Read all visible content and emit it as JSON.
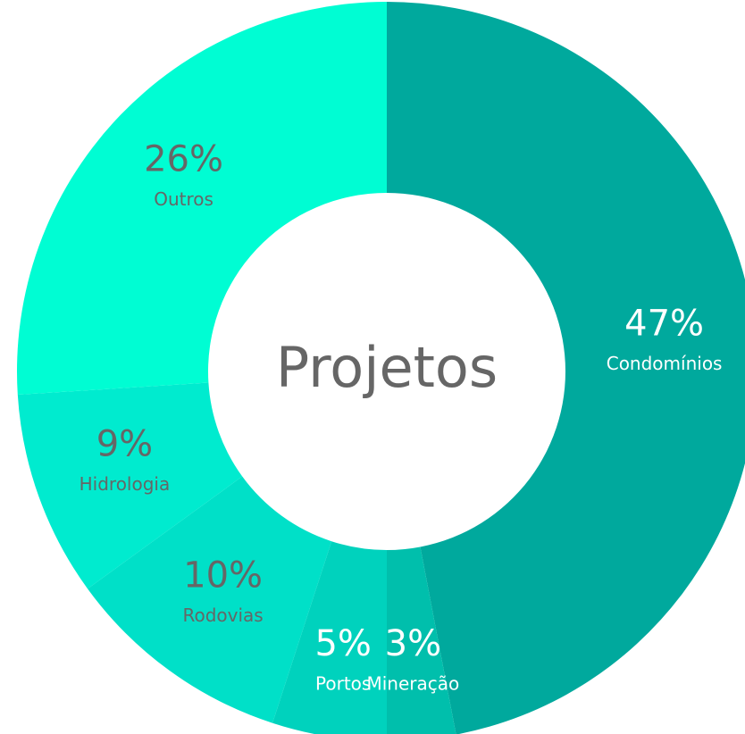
{
  "chart_data": {
    "type": "donut",
    "title": "Projetos",
    "categories": [
      "Condomínios",
      "Mineração",
      "Portos",
      "Rodovias",
      "Hidrologia",
      "Outros"
    ],
    "values": [
      47,
      3,
      5,
      10,
      9,
      26
    ],
    "value_labels": [
      "47%",
      "3%",
      "5%",
      "10%",
      "9%",
      "26%"
    ],
    "colors": [
      "#00a99d",
      "#00bfac",
      "#00d2bd",
      "#00e0c8",
      "#00ebcf",
      "#00fdd3"
    ],
    "label_colors": [
      "#ffffff",
      "#ffffff",
      "#ffffff",
      "#666666",
      "#666666",
      "#666666"
    ]
  }
}
